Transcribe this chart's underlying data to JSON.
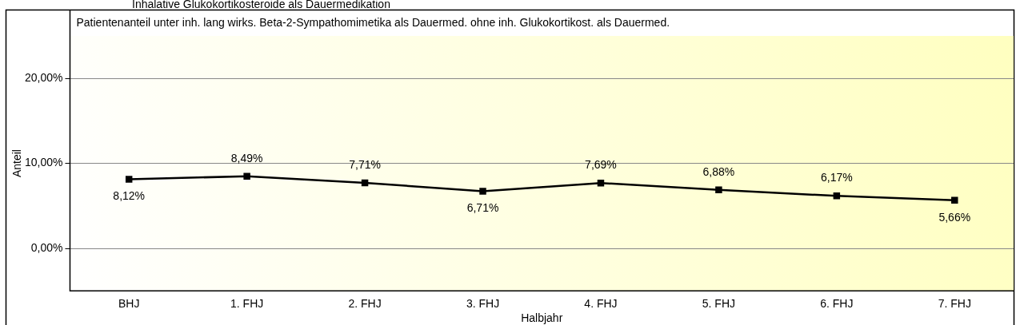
{
  "chart_data": {
    "type": "line",
    "title": "Inhalative Glukokortikosteroide als Dauermedikation",
    "subtitle": "Patientenanteil unter inh. lang wirks. Beta-2-Sympathomimetika als Dauermed. ohne inh. Glukokortikost. als Dauermed.",
    "xlabel": "Halbjahr",
    "ylabel": "Anteil",
    "categories": [
      "BHJ",
      "1. FHJ",
      "2. FHJ",
      "3. FHJ",
      "4. FHJ",
      "5. FHJ",
      "6. FHJ",
      "7. FHJ"
    ],
    "series": [
      {
        "color": "#000000",
        "values": [
          8.12,
          8.49,
          7.71,
          6.71,
          7.69,
          6.88,
          6.17,
          5.66
        ],
        "value_labels": [
          "8,12%",
          "8,49%",
          "7,71%",
          "6,71%",
          "7,69%",
          "6,88%",
          "6,17%",
          "5,66%"
        ]
      }
    ],
    "ylim": [
      -5,
      25
    ],
    "yticks": [
      {
        "value": 0,
        "label": "0,00%"
      },
      {
        "value": 10,
        "label": "10,00%"
      },
      {
        "value": 20,
        "label": "20,00%"
      }
    ],
    "grid": "y",
    "legend": false,
    "marker": "square",
    "line_style": "solid"
  }
}
